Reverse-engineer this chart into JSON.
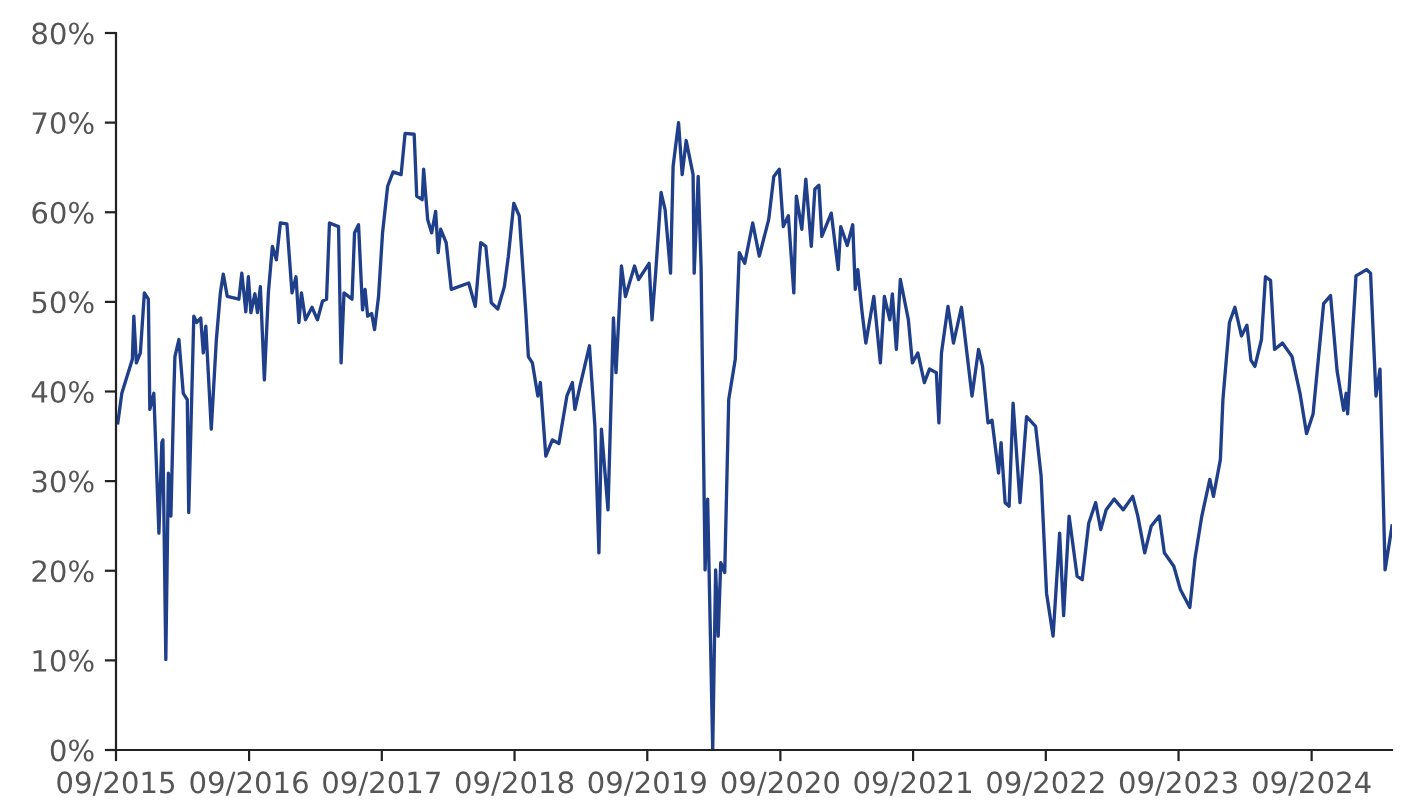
{
  "chart_data": {
    "type": "line",
    "x": [
      "2015-09-06",
      "2015-09-17",
      "2015-10-16",
      "2015-10-20",
      "2015-10-27",
      "2015-11-07",
      "2015-11-18",
      "2015-11-29",
      "2015-12-03",
      "2015-12-14",
      "2015-12-28",
      "2016-01-05",
      "2016-01-08",
      "2016-01-16",
      "2016-01-23",
      "2016-01-30",
      "2016-02-07",
      "2016-02-10",
      "2016-02-21",
      "2016-03-04",
      "2016-03-15",
      "2016-03-19",
      "2016-04-02",
      "2016-04-10",
      "2016-04-21",
      "2016-04-28",
      "2016-05-05",
      "2016-05-20",
      "2016-06-03",
      "2016-06-14",
      "2016-06-22",
      "2016-07-03",
      "2016-08-04",
      "2016-08-12",
      "2016-08-23",
      "2016-08-30",
      "2016-09-06",
      "2016-09-17",
      "2016-09-24",
      "2016-10-02",
      "2016-10-13",
      "2016-10-24",
      "2016-11-04",
      "2016-11-15",
      "2016-11-26",
      "2016-12-14",
      "2016-12-28",
      "2017-01-08",
      "2017-01-16",
      "2017-01-23",
      "2017-02-03",
      "2017-02-21",
      "2017-03-08",
      "2017-03-22",
      "2017-04-02",
      "2017-04-10",
      "2017-05-05",
      "2017-05-12",
      "2017-05-20",
      "2017-06-11",
      "2017-06-18",
      "2017-06-29",
      "2017-07-10",
      "2017-07-17",
      "2017-07-24",
      "2017-08-04",
      "2017-08-12",
      "2017-08-23",
      "2017-09-03",
      "2017-09-17",
      "2017-10-02",
      "2017-10-24",
      "2017-11-04",
      "2017-11-29",
      "2017-12-06",
      "2017-12-21",
      "2017-12-25",
      "2018-01-05",
      "2018-01-16",
      "2018-01-27",
      "2018-02-03",
      "2018-02-10",
      "2018-02-25",
      "2018-03-11",
      "2018-04-28",
      "2018-05-16",
      "2018-05-31",
      "2018-06-14",
      "2018-06-29",
      "2018-07-17",
      "2018-08-04",
      "2018-08-15",
      "2018-08-30",
      "2018-09-14",
      "2018-10-02",
      "2018-10-09",
      "2018-10-20",
      "2018-11-04",
      "2018-11-11",
      "2018-11-26",
      "2018-12-14",
      "2019-01-01",
      "2019-01-23",
      "2019-02-07",
      "2019-02-14",
      "2019-02-28",
      "2019-03-26",
      "2019-04-10",
      "2019-04-21",
      "2019-04-28",
      "2019-05-16",
      "2019-05-31",
      "2019-06-07",
      "2019-06-22",
      "2019-07-03",
      "2019-07-28",
      "2019-08-08",
      "2019-09-06",
      "2019-09-14",
      "2019-09-24",
      "2019-10-09",
      "2019-10-20",
      "2019-11-04",
      "2019-11-11",
      "2019-11-26",
      "2019-12-06",
      "2019-12-17",
      "2020-01-05",
      "2020-01-08",
      "2020-01-19",
      "2020-01-27",
      "2020-02-07",
      "2020-02-14",
      "2020-02-28",
      "2020-03-07",
      "2020-03-14",
      "2020-03-21",
      "2020-04-01",
      "2020-04-12",
      "2020-04-30",
      "2020-05-11",
      "2020-05-26",
      "2020-06-17",
      "2020-07-05",
      "2020-07-31",
      "2020-08-14",
      "2020-08-29",
      "2020-09-09",
      "2020-09-23",
      "2020-10-08",
      "2020-10-15",
      "2020-10-30",
      "2020-11-10",
      "2020-11-25",
      "2020-12-05",
      "2020-12-16",
      "2020-12-24",
      "2021-01-19",
      "2021-02-07",
      "2021-02-14",
      "2021-03-04",
      "2021-03-19",
      "2021-03-26",
      "2021-04-02",
      "2021-04-13",
      "2021-04-24",
      "2021-05-16",
      "2021-06-03",
      "2021-06-14",
      "2021-06-29",
      "2021-07-06",
      "2021-07-17",
      "2021-07-28",
      "2021-08-19",
      "2021-08-30",
      "2021-09-14",
      "2021-10-02",
      "2021-10-16",
      "2021-11-04",
      "2021-11-11",
      "2021-11-18",
      "2021-12-06",
      "2021-12-21",
      "2022-01-12",
      "2022-01-27",
      "2022-02-10",
      "2022-02-28",
      "2022-03-11",
      "2022-03-26",
      "2022-04-06",
      "2022-04-24",
      "2022-05-01",
      "2022-05-12",
      "2022-05-23",
      "2022-06-03",
      "2022-06-22",
      "2022-07-10",
      "2022-08-04",
      "2022-08-19",
      "2022-09-03",
      "2022-09-21",
      "2022-10-09",
      "2022-10-20",
      "2022-11-04",
      "2022-11-26",
      "2022-12-10",
      "2022-12-28",
      "2023-01-16",
      "2023-01-30",
      "2023-02-14",
      "2023-03-08",
      "2023-04-02",
      "2023-04-28",
      "2023-05-12",
      "2023-05-31",
      "2023-06-18",
      "2023-07-10",
      "2023-07-24",
      "2023-08-19",
      "2023-09-06",
      "2023-10-02",
      "2023-10-16",
      "2023-11-04",
      "2023-11-26",
      "2023-12-06",
      "2023-12-25",
      "2024-01-01",
      "2024-01-19",
      "2024-02-03",
      "2024-02-21",
      "2024-03-07",
      "2024-03-18",
      "2024-03-29",
      "2024-04-16",
      "2024-04-27",
      "2024-05-11",
      "2024-05-22",
      "2024-06-13",
      "2024-07-09",
      "2024-07-31",
      "2024-08-18",
      "2024-09-05",
      "2024-10-04",
      "2024-10-23",
      "2024-11-10",
      "2024-11-28",
      "2024-12-05",
      "2024-12-09",
      "2025-01-01",
      "2025-01-30",
      "2025-02-10",
      "2025-02-25",
      "2025-03-08",
      "2025-03-22",
      "2025-04-10"
    ],
    "series": [
      {
        "color": "#1f3f8a",
        "values": [
          36.5,
          39.8,
          43.6,
          48.4,
          43.2,
          44.3,
          51,
          50.3,
          38,
          39.8,
          24.2,
          34.3,
          34.6,
          10.1,
          30.9,
          26.1,
          39.8,
          43.9,
          45.8,
          39.8,
          39.1,
          26.5,
          48.4,
          47.7,
          48.2,
          44.3,
          47.3,
          35.8,
          45.8,
          51,
          53.1,
          50.6,
          50.3,
          53.2,
          48.9,
          52.8,
          48.8,
          50.9,
          48.8,
          51.7,
          41.3,
          51,
          56.2,
          54.7,
          58.8,
          58.7,
          51,
          52.8,
          47.7,
          51,
          48,
          49.4,
          48,
          50.1,
          50.3,
          58.8,
          58.4,
          43.2,
          51,
          50.3,
          57.7,
          58.6,
          49.1,
          51.4,
          48.4,
          48.7,
          46.9,
          50.6,
          57.7,
          62.9,
          64.5,
          64.2,
          68.8,
          68.7,
          61.8,
          61.4,
          64.8,
          59.2,
          57.7,
          60.1,
          55.5,
          58.1,
          56.6,
          51.4,
          52.1,
          49.5,
          56.6,
          56.2,
          49.9,
          49.2,
          51.7,
          55.1,
          61,
          59.6,
          48.8,
          43.9,
          43.2,
          39.5,
          41,
          32.8,
          34.6,
          34.2,
          39.5,
          41,
          38,
          40.6,
          45.1,
          36.1,
          22,
          35.8,
          26.8,
          48.2,
          42.1,
          54,
          50.6,
          54,
          52.5,
          54.3,
          48,
          53.2,
          62.2,
          60.3,
          53.2,
          65.1,
          70,
          64.2,
          68,
          64.2,
          53.2,
          64,
          53.9,
          20.1,
          28,
          0,
          20.1,
          12.7,
          20.9,
          19.8,
          39.1,
          43.6,
          55.5,
          54.3,
          58.8,
          55.1,
          59.2,
          64,
          64.8,
          58.4,
          59.6,
          51,
          61.8,
          58.1,
          63.7,
          56.2,
          62.6,
          63,
          57.3,
          59.9,
          53.6,
          58.4,
          56.3,
          58.6,
          51.4,
          53.6,
          49.1,
          45.4,
          50.6,
          43.2,
          50.6,
          48,
          50.9,
          44.7,
          52.5,
          48,
          43.2,
          44.3,
          41,
          42.5,
          42.1,
          36.5,
          44.3,
          49.5,
          45.4,
          49.4,
          44.3,
          39.5,
          44.7,
          42.8,
          36.5,
          36.8,
          30.9,
          34.3,
          27.6,
          27.2,
          38.7,
          27.6,
          37.2,
          36.1,
          30.6,
          17.5,
          12.7,
          24.2,
          15,
          26.1,
          19.4,
          19,
          25.3,
          27.6,
          24.6,
          26.8,
          28,
          26.8,
          28.3,
          26.1,
          22,
          25,
          26.1,
          22,
          20.5,
          17.9,
          15.9,
          21.3,
          26.1,
          30.2,
          28.3,
          32.4,
          39.1,
          47.7,
          49.4,
          46.2,
          47.4,
          43.5,
          42.8,
          45.8,
          52.8,
          52.4,
          44.7,
          45.4,
          43.9,
          39.8,
          35.3,
          37.5,
          49.8,
          50.7,
          42.3,
          37.9,
          39.8,
          37.5,
          52.9,
          53.6,
          53.2,
          39.5,
          42.5,
          20.1,
          25
        ]
      }
    ],
    "xlim": [
      "2015-09-01",
      "2025-04-10"
    ],
    "xticks": [
      {
        "value": "2015-09-01",
        "label": "09/2015"
      },
      {
        "value": "2016-09-01",
        "label": "09/2016"
      },
      {
        "value": "2017-09-01",
        "label": "09/2017"
      },
      {
        "value": "2018-09-01",
        "label": "09/2018"
      },
      {
        "value": "2019-09-01",
        "label": "09/2019"
      },
      {
        "value": "2020-09-01",
        "label": "09/2020"
      },
      {
        "value": "2021-09-01",
        "label": "09/2021"
      },
      {
        "value": "2022-09-01",
        "label": "09/2022"
      },
      {
        "value": "2023-09-01",
        "label": "09/2023"
      },
      {
        "value": "2024-09-01",
        "label": "09/2024"
      }
    ],
    "ylim": [
      0,
      80
    ],
    "yticks": [
      {
        "value": 0,
        "label": "0%"
      },
      {
        "value": 10,
        "label": "10%"
      },
      {
        "value": 20,
        "label": "20%"
      },
      {
        "value": 30,
        "label": "30%"
      },
      {
        "value": 40,
        "label": "40%"
      },
      {
        "value": 50,
        "label": "50%"
      },
      {
        "value": 60,
        "label": "60%"
      },
      {
        "value": 70,
        "label": "70%"
      },
      {
        "value": 80,
        "label": "80%"
      }
    ],
    "grid": false
  }
}
